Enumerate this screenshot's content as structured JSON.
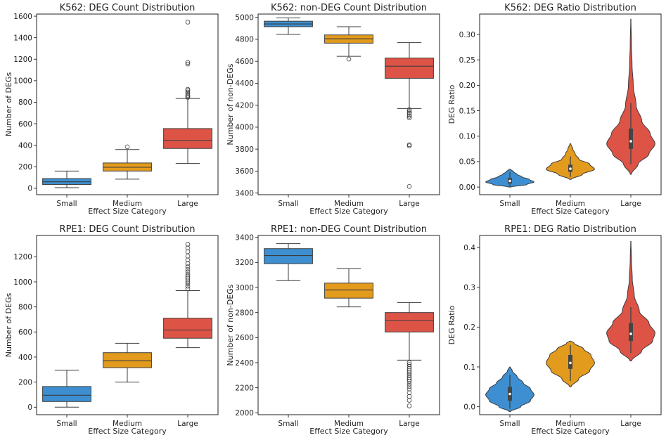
{
  "chart_data": [
    {
      "type": "box",
      "title": "K562: DEG Count Distribution",
      "xlabel": "Effect Size Category",
      "ylabel": "Number of DEGs",
      "ylim": [
        -60,
        1620
      ],
      "yticks": [
        0,
        200,
        400,
        600,
        800,
        1000,
        1200,
        1400,
        1600
      ],
      "categories": [
        "Small",
        "Medium",
        "Large"
      ],
      "colors": [
        "#3d8fd1",
        "#e39b1d",
        "#dd5446"
      ],
      "boxes": [
        {
          "whislo": 5,
          "q1": 35,
          "med": 60,
          "q3": 90,
          "whishi": 160,
          "fliers": []
        },
        {
          "whislo": 85,
          "q1": 160,
          "med": 195,
          "q3": 235,
          "whishi": 360,
          "fliers": [
            385
          ]
        },
        {
          "whislo": 230,
          "q1": 370,
          "med": 445,
          "q3": 555,
          "whishi": 835,
          "fliers": [
            845,
            855,
            865,
            880,
            895,
            910,
            920,
            1155,
            1170,
            1545
          ]
        }
      ]
    },
    {
      "type": "box",
      "title": "K562: non-DEG Count Distribution",
      "xlabel": "Effect Size Category",
      "ylabel": "Number of non-DEGs",
      "ylim": [
        3385,
        5030
      ],
      "yticks": [
        3400,
        3600,
        3800,
        4000,
        4200,
        4400,
        4600,
        4800,
        5000
      ],
      "categories": [
        "Small",
        "Medium",
        "Large"
      ],
      "colors": [
        "#3d8fd1",
        "#e39b1d",
        "#dd5446"
      ],
      "boxes": [
        {
          "whislo": 4845,
          "q1": 4915,
          "med": 4940,
          "q3": 4965,
          "whishi": 4995,
          "fliers": []
        },
        {
          "whislo": 4645,
          "q1": 4765,
          "med": 4805,
          "q3": 4840,
          "whishi": 4915,
          "fliers": [
            4620
          ]
        },
        {
          "whislo": 4170,
          "q1": 4445,
          "med": 4555,
          "q3": 4630,
          "whishi": 4770,
          "fliers": [
            4160,
            4145,
            4130,
            4115,
            4100,
            4085,
            3840,
            3830,
            3460
          ]
        }
      ]
    },
    {
      "type": "violin",
      "title": "K562: DEG Ratio Distribution",
      "xlabel": "Effect Size Category",
      "ylabel": "DEG Ratio",
      "ylim": [
        -0.015,
        0.34
      ],
      "yticks": [
        0.0,
        0.05,
        0.1,
        0.15,
        0.2,
        0.25,
        0.3
      ],
      "tick_labels": [
        "0.00",
        "0.05",
        "0.10",
        "0.15",
        "0.20",
        "0.25",
        "0.30"
      ],
      "categories": [
        "Small",
        "Medium",
        "Large"
      ],
      "colors": [
        "#3d8fd1",
        "#e39b1d",
        "#dd5446"
      ],
      "violins": [
        {
          "min": 0.0,
          "max": 0.035,
          "profile": [
            [
              0.0,
              0.05
            ],
            [
              0.005,
              0.7
            ],
            [
              0.01,
              1.0
            ],
            [
              0.015,
              0.8
            ],
            [
              0.02,
              0.5
            ],
            [
              0.025,
              0.3
            ],
            [
              0.03,
              0.15
            ],
            [
              0.035,
              0.03
            ]
          ],
          "whislo": 0.001,
          "q1": 0.007,
          "med": 0.012,
          "q3": 0.018,
          "whishi": 0.03
        },
        {
          "min": 0.015,
          "max": 0.085,
          "profile": [
            [
              0.015,
              0.03
            ],
            [
              0.025,
              0.5
            ],
            [
              0.035,
              1.0
            ],
            [
              0.045,
              0.8
            ],
            [
              0.055,
              0.35
            ],
            [
              0.065,
              0.2
            ],
            [
              0.075,
              0.1
            ],
            [
              0.085,
              0.02
            ]
          ],
          "whislo": 0.02,
          "q1": 0.03,
          "med": 0.036,
          "q3": 0.044,
          "whishi": 0.06
        },
        {
          "min": 0.025,
          "max": 0.33,
          "profile": [
            [
              0.025,
              0.02
            ],
            [
              0.045,
              0.3
            ],
            [
              0.065,
              0.75
            ],
            [
              0.085,
              1.0
            ],
            [
              0.105,
              0.8
            ],
            [
              0.13,
              0.45
            ],
            [
              0.16,
              0.22
            ],
            [
              0.2,
              0.1
            ],
            [
              0.24,
              0.05
            ],
            [
              0.28,
              0.025
            ],
            [
              0.33,
              0.005
            ]
          ],
          "whislo": 0.045,
          "q1": 0.075,
          "med": 0.09,
          "q3": 0.115,
          "whishi": 0.165
        }
      ]
    },
    {
      "type": "box",
      "title": "RPE1: DEG Count Distribution",
      "xlabel": "Effect Size Category",
      "ylabel": "Number of DEGs",
      "ylim": [
        -60,
        1370
      ],
      "yticks": [
        0,
        200,
        400,
        600,
        800,
        1000,
        1200
      ],
      "categories": [
        "Small",
        "Medium",
        "Large"
      ],
      "colors": [
        "#3d8fd1",
        "#e39b1d",
        "#dd5446"
      ],
      "boxes": [
        {
          "whislo": 0,
          "q1": 45,
          "med": 95,
          "q3": 165,
          "whishi": 295,
          "fliers": []
        },
        {
          "whislo": 200,
          "q1": 315,
          "med": 370,
          "q3": 435,
          "whishi": 510,
          "fliers": []
        },
        {
          "whislo": 475,
          "q1": 550,
          "med": 615,
          "q3": 710,
          "whishi": 930,
          "fliers": [
            945,
            965,
            985,
            1000,
            1015,
            1030,
            1045,
            1060,
            1080,
            1100,
            1120,
            1145,
            1175,
            1205,
            1240,
            1270,
            1300
          ]
        }
      ]
    },
    {
      "type": "box",
      "title": "RPE1: non-DEG Count Distribution",
      "xlabel": "Effect Size Category",
      "ylabel": "Number of non-DEGs",
      "ylim": [
        1985,
        3415
      ],
      "yticks": [
        2000,
        2200,
        2400,
        2600,
        2800,
        3000,
        3200,
        3400
      ],
      "categories": [
        "Small",
        "Medium",
        "Large"
      ],
      "colors": [
        "#3d8fd1",
        "#e39b1d",
        "#dd5446"
      ],
      "boxes": [
        {
          "whislo": 3055,
          "q1": 3190,
          "med": 3255,
          "q3": 3310,
          "whishi": 3350,
          "fliers": []
        },
        {
          "whislo": 2845,
          "q1": 2915,
          "med": 2980,
          "q3": 3035,
          "whishi": 3150,
          "fliers": []
        },
        {
          "whislo": 2420,
          "q1": 2645,
          "med": 2735,
          "q3": 2800,
          "whishi": 2880,
          "fliers": [
            2400,
            2385,
            2370,
            2355,
            2340,
            2325,
            2310,
            2295,
            2280,
            2265,
            2250,
            2230,
            2210,
            2190,
            2160,
            2130,
            2100,
            2055
          ]
        }
      ]
    },
    {
      "type": "violin",
      "title": "RPE1: DEG Ratio Distribution",
      "xlabel": "Effect Size Category",
      "ylabel": "DEG Ratio",
      "ylim": [
        -0.02,
        0.43
      ],
      "yticks": [
        0.0,
        0.1,
        0.2,
        0.3,
        0.4
      ],
      "tick_labels": [
        "0.0",
        "0.1",
        "0.2",
        "0.3",
        "0.4"
      ],
      "categories": [
        "Small",
        "Medium",
        "Large"
      ],
      "colors": [
        "#3d8fd1",
        "#e39b1d",
        "#dd5446"
      ],
      "violins": [
        {
          "min": -0.012,
          "max": 0.1,
          "profile": [
            [
              -0.012,
              0.03
            ],
            [
              0.0,
              0.45
            ],
            [
              0.015,
              0.85
            ],
            [
              0.03,
              1.0
            ],
            [
              0.045,
              0.85
            ],
            [
              0.06,
              0.55
            ],
            [
              0.075,
              0.3
            ],
            [
              0.09,
              0.1
            ],
            [
              0.1,
              0.02
            ]
          ],
          "whislo": -0.005,
          "q1": 0.015,
          "med": 0.032,
          "q3": 0.05,
          "whishi": 0.08
        },
        {
          "min": 0.05,
          "max": 0.165,
          "profile": [
            [
              0.05,
              0.03
            ],
            [
              0.07,
              0.35
            ],
            [
              0.09,
              0.8
            ],
            [
              0.11,
              1.0
            ],
            [
              0.13,
              0.85
            ],
            [
              0.145,
              0.55
            ],
            [
              0.16,
              0.15
            ],
            [
              0.165,
              0.03
            ]
          ],
          "whislo": 0.065,
          "q1": 0.095,
          "med": 0.11,
          "q3": 0.13,
          "whishi": 0.155
        },
        {
          "min": 0.115,
          "max": 0.415,
          "profile": [
            [
              0.115,
              0.03
            ],
            [
              0.14,
              0.45
            ],
            [
              0.165,
              0.9
            ],
            [
              0.185,
              1.0
            ],
            [
              0.21,
              0.75
            ],
            [
              0.24,
              0.35
            ],
            [
              0.28,
              0.14
            ],
            [
              0.32,
              0.06
            ],
            [
              0.37,
              0.025
            ],
            [
              0.415,
              0.005
            ]
          ],
          "whislo": 0.135,
          "q1": 0.165,
          "med": 0.183,
          "q3": 0.21,
          "whishi": 0.25
        }
      ]
    }
  ]
}
